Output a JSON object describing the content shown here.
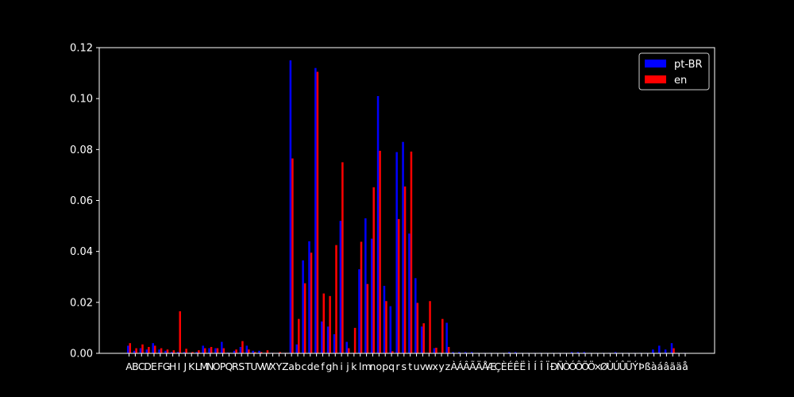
{
  "chart_data": {
    "type": "bar",
    "categories": [
      "A",
      "B",
      "C",
      "D",
      "E",
      "F",
      "G",
      "H",
      "I",
      "J",
      "K",
      "L",
      "M",
      "N",
      "O",
      "P",
      "Q",
      "R",
      "S",
      "T",
      "U",
      "V",
      "W",
      "X",
      "Y",
      "Z",
      "a",
      "b",
      "c",
      "d",
      "e",
      "f",
      "g",
      "h",
      "i",
      "j",
      "k",
      "l",
      "m",
      "n",
      "o",
      "p",
      "q",
      "r",
      "s",
      "t",
      "u",
      "v",
      "w",
      "x",
      "y",
      "z",
      "À",
      "Á",
      "Â",
      "Ã",
      "Ä",
      "Å",
      "Æ",
      "Ç",
      "È",
      "É",
      "Ê",
      "Ë",
      "Ì",
      "Í",
      "Î",
      "Ï",
      "Ð",
      "Ñ",
      "Ò",
      "Ó",
      "Ô",
      "Õ",
      "Ö",
      "×",
      "Ø",
      "Ù",
      "Ú",
      "Û",
      "Ü",
      "Ý",
      "Þ",
      "ß",
      "à",
      "á",
      "â",
      "ã",
      "ä",
      "å"
    ],
    "series": [
      {
        "name": "pt-BR",
        "color": "#0000ff",
        "values": [
          0.003,
          0.001,
          0.002,
          0.0015,
          0.004,
          0.0015,
          0.001,
          0.0005,
          0.0005,
          0.0005,
          0.0002,
          0.0005,
          0.003,
          0.002,
          0.002,
          0.0045,
          0.0003,
          0.001,
          0.0025,
          0.003,
          0.001,
          0.001,
          0.0002,
          0.0002,
          0.0002,
          0.0002,
          0.115,
          0.0035,
          0.0365,
          0.044,
          0.112,
          0.0125,
          0.0105,
          0.0075,
          0.052,
          0.0045,
          0.0002,
          0.033,
          0.053,
          0.045,
          0.101,
          0.0265,
          0.0185,
          0.079,
          0.083,
          0.047,
          0.0295,
          0.0105,
          0.0002,
          0.002,
          0.0002,
          0.012,
          0.0005,
          0.0005,
          0.0005,
          0.0005,
          0.0002,
          0.0002,
          0.0002,
          0.0002,
          0.0002,
          0.0005,
          0.0005,
          0.0002,
          0.0002,
          0.0002,
          0.0002,
          0.0002,
          0.0002,
          0.0002,
          0.0002,
          0.0005,
          0.0005,
          0.0005,
          0.0002,
          0.0002,
          0.0002,
          0.0002,
          0.0005,
          0.0002,
          0.0002,
          0.0002,
          0.0002,
          0.0002,
          0.0015,
          0.003,
          0.0015,
          0.004,
          0.0002,
          0.0002
        ]
      },
      {
        "name": "en",
        "color": "#ff0000",
        "values": [
          0.004,
          0.002,
          0.0035,
          0.0025,
          0.003,
          0.002,
          0.0015,
          0.0012,
          0.0165,
          0.0018,
          0.0005,
          0.0012,
          0.002,
          0.0025,
          0.002,
          0.002,
          0.0002,
          0.0015,
          0.0048,
          0.0015,
          0.0005,
          0.0005,
          0.0012,
          0.0002,
          0.0005,
          0.0002,
          0.0765,
          0.0135,
          0.0275,
          0.0395,
          0.1105,
          0.0235,
          0.0225,
          0.0425,
          0.075,
          0.002,
          0.01,
          0.0438,
          0.0272,
          0.0652,
          0.0795,
          0.0205,
          0.0008,
          0.0527,
          0.0655,
          0.0792,
          0.0198,
          0.0118,
          0.0205,
          0.0022,
          0.0135,
          0.0025,
          0,
          0,
          0,
          0,
          0,
          0,
          0,
          0,
          0,
          0,
          0,
          0,
          0,
          0,
          0,
          0,
          0,
          0,
          0,
          0,
          0,
          0,
          0,
          0,
          0,
          0,
          0,
          0,
          0,
          0,
          0,
          0,
          0,
          0,
          0,
          0.002,
          0,
          0
        ]
      }
    ],
    "yticks": [
      "0.00",
      "0.02",
      "0.04",
      "0.06",
      "0.08",
      "0.10",
      "0.12"
    ],
    "ylim": [
      0,
      0.12
    ],
    "legend_position": "top-right",
    "background": "#000000",
    "foreground": "#ffffff"
  }
}
